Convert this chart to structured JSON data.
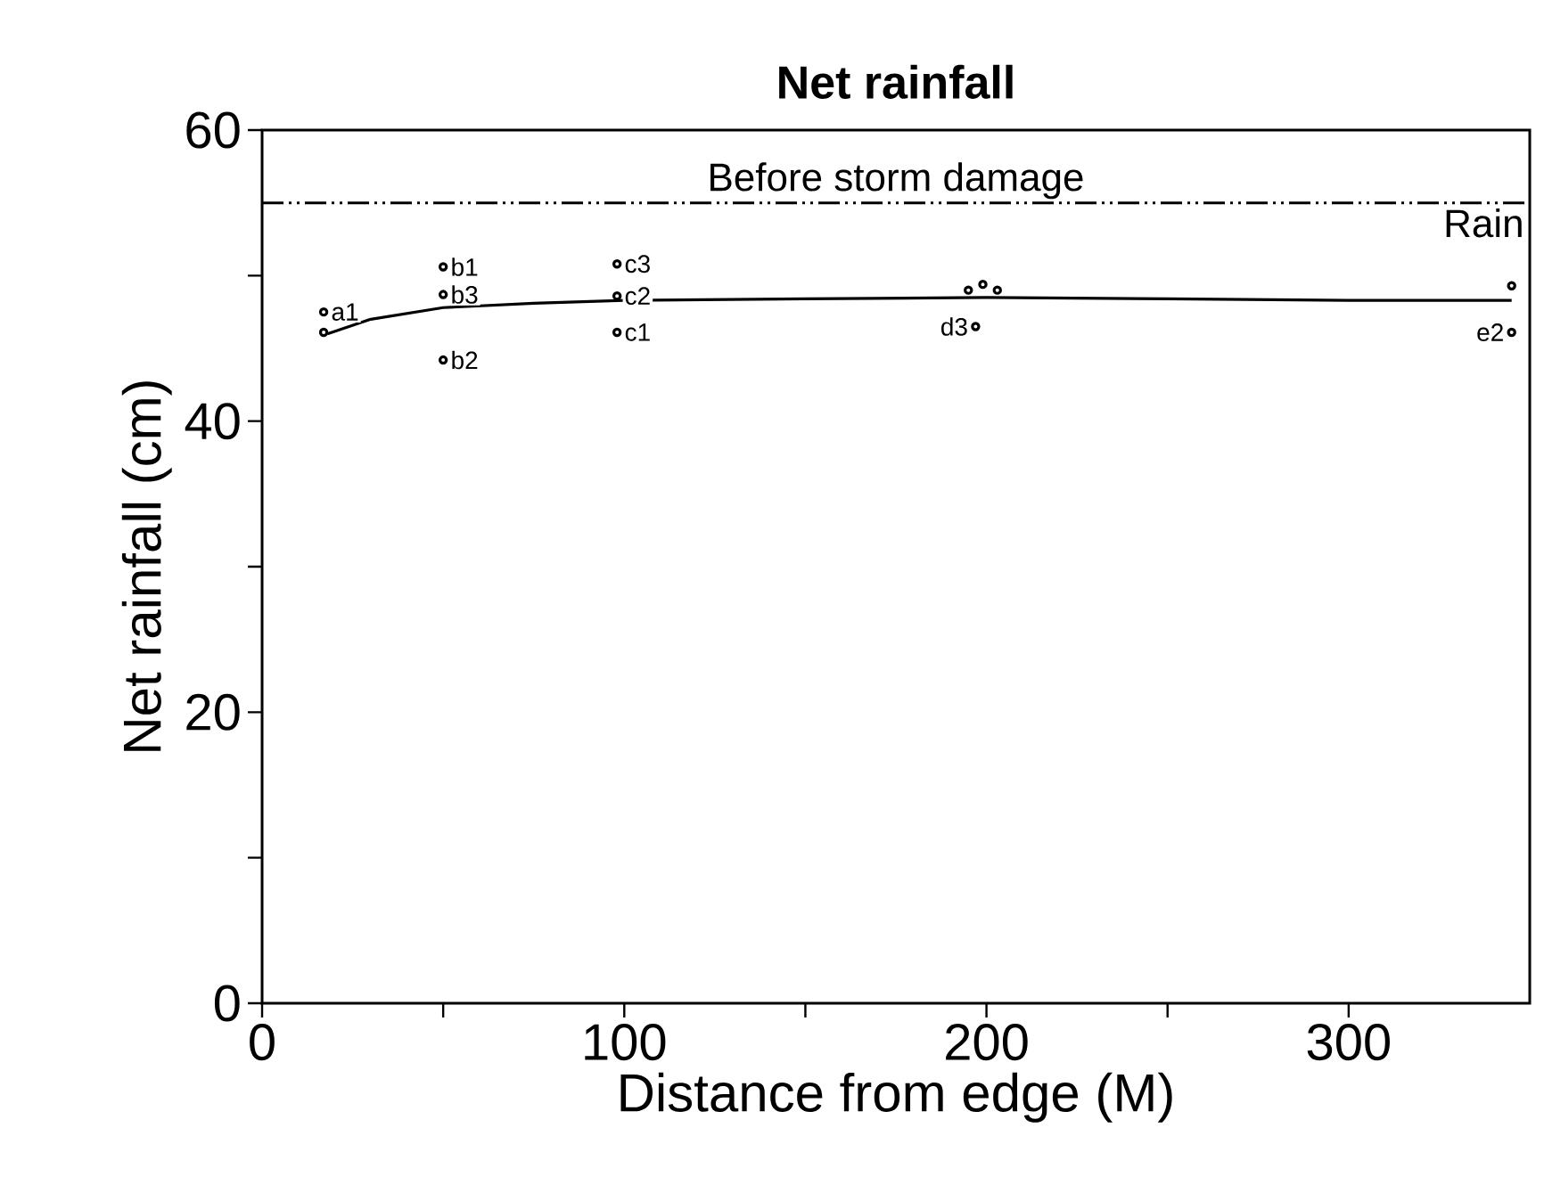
{
  "chart_data": {
    "type": "line",
    "title": "Net rainfall",
    "xlabel": "Distance from edge (M)",
    "ylabel": "Net rainfall (cm)",
    "series": [
      {
        "color": "#000000",
        "x": [
          18,
          30,
          50,
          75,
          100,
          150,
          200,
          250,
          300,
          345
        ],
        "values": [
          46,
          47.0,
          47.8,
          48.1,
          48.3,
          48.4,
          48.5,
          48.4,
          48.3,
          48.3
        ]
      },
      {
        "type": "scatter",
        "color": "#000000",
        "x": [
          17,
          17,
          50,
          50,
          50,
          98,
          98,
          98,
          195,
          199,
          203,
          197,
          345,
          345
        ],
        "values": [
          47.5,
          46.1,
          50.6,
          48.7,
          44.2,
          50.8,
          48.6,
          46.1,
          49,
          49.4,
          49,
          46.5,
          49.3,
          46.1
        ]
      }
    ],
    "xlim": [
      0,
      350
    ],
    "ylim": [
      0,
      60
    ],
    "xticks": [
      0,
      {
        "value": 50,
        "label": null
      },
      100,
      {
        "value": 150,
        "label": null
      },
      200,
      {
        "value": 250,
        "label": null
      },
      300
    ],
    "yticks": [
      0,
      {
        "value": 10,
        "label": null
      },
      20,
      {
        "value": 30,
        "label": null
      },
      40,
      {
        "value": 50,
        "label": null
      },
      60
    ],
    "marker": "none",
    "line_style": "solid",
    "grid": false,
    "ref_lines": [
      {
        "axis": "y",
        "value": 55,
        "label": "Before storm damage",
        "line_style": "dashdotdotted"
      }
    ],
    "annotations": [
      "Rain",
      {
        "text": "a1",
        "x": 17,
        "y": 47.5
      },
      {
        "text": "b1",
        "x": 50,
        "y": 50.6
      },
      {
        "text": "b3",
        "x": 50,
        "y": 48.7
      },
      {
        "text": "b2",
        "x": 50,
        "y": 44.2
      },
      {
        "text": "c3",
        "x": 98,
        "y": 50.8
      },
      {
        "text": "c2",
        "x": 98,
        "y": 48.6
      },
      {
        "text": "c1",
        "x": 98,
        "y": 46.1
      },
      {
        "text": "d3",
        "x": 197,
        "y": 46.5
      },
      {
        "text": "e2",
        "x": 345,
        "y": 46.1
      }
    ]
  }
}
